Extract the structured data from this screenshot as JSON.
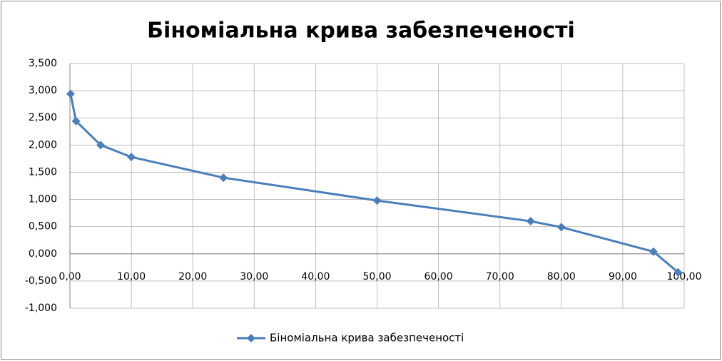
{
  "chart_data": {
    "type": "line",
    "title": "Біноміальна крива забезпеченості",
    "x": [
      0.1,
      1,
      5,
      10,
      25,
      50,
      75,
      80,
      95,
      99
    ],
    "series": [
      {
        "name": "Біноміальна крива забезпеченості",
        "color": "#4a7ebb",
        "values": [
          2.94,
          2.44,
          2.0,
          1.78,
          1.4,
          0.98,
          0.6,
          0.49,
          0.04,
          -0.34
        ]
      }
    ],
    "xlim": [
      0,
      100
    ],
    "xticks": [
      {
        "value": 0,
        "label": "0,00"
      },
      {
        "value": 10,
        "label": "10,00"
      },
      {
        "value": 20,
        "label": "20,00"
      },
      {
        "value": 30,
        "label": "30,00"
      },
      {
        "value": 40,
        "label": "40,00"
      },
      {
        "value": 50,
        "label": "50,00"
      },
      {
        "value": 60,
        "label": "60,00"
      },
      {
        "value": 70,
        "label": "70,00"
      },
      {
        "value": 80,
        "label": "80,00"
      },
      {
        "value": 90,
        "label": "90,00"
      },
      {
        "value": 100,
        "label": "100,00"
      }
    ],
    "ylim": [
      -1,
      3.5
    ],
    "yticks": [
      {
        "value": -1,
        "label": "-1,000"
      },
      {
        "value": -0.5,
        "label": "-0,500"
      },
      {
        "value": 0,
        "label": "0,000"
      },
      {
        "value": 0.5,
        "label": "0,500"
      },
      {
        "value": 1,
        "label": "1,000"
      },
      {
        "value": 1.5,
        "label": "1,500"
      },
      {
        "value": 2,
        "label": "2,000"
      },
      {
        "value": 2.5,
        "label": "2,500"
      },
      {
        "value": 3,
        "label": "3,000"
      },
      {
        "value": 3.5,
        "label": "3,500"
      }
    ],
    "grid": true,
    "legend": "bottom"
  }
}
